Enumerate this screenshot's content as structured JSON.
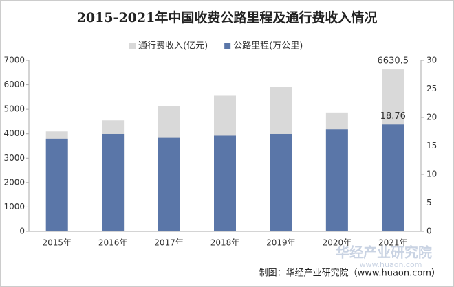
{
  "chart_data": {
    "type": "bar",
    "title": "2015-2021年中国收费公路里程及通行费收入情况",
    "categories": [
      "2015年",
      "2016年",
      "2017年",
      "2018年",
      "2019年",
      "2020年",
      "2021年"
    ],
    "series": [
      {
        "name": "通行费收入(亿元)",
        "color": "#d9d9d9",
        "axis": "y",
        "values": [
          4097,
          4548,
          5130,
          5553,
          5932,
          4868,
          6630.5
        ],
        "value_labels": [
          null,
          null,
          null,
          null,
          null,
          null,
          "6630.5"
        ]
      },
      {
        "name": "公路里程(万公里)",
        "color": "#5a76a8",
        "axis": "y2",
        "values": [
          16.28,
          17.11,
          16.43,
          16.81,
          17.11,
          17.92,
          18.76
        ],
        "value_labels": [
          null,
          null,
          null,
          null,
          null,
          null,
          "18.76"
        ]
      }
    ],
    "ylim": [
      0,
      7000
    ],
    "yticks": [
      0,
      1000,
      2000,
      3000,
      4000,
      5000,
      6000,
      7000
    ],
    "y2lim": [
      0,
      30
    ],
    "y2ticks": [
      0,
      5,
      10,
      15,
      20,
      25,
      30
    ],
    "grid": false,
    "legend": "top",
    "source": "制图：华经产业研究院（www.huaon.com）",
    "watermark": "华经产业研究院",
    "watermark_url": "www.huaon.com"
  }
}
